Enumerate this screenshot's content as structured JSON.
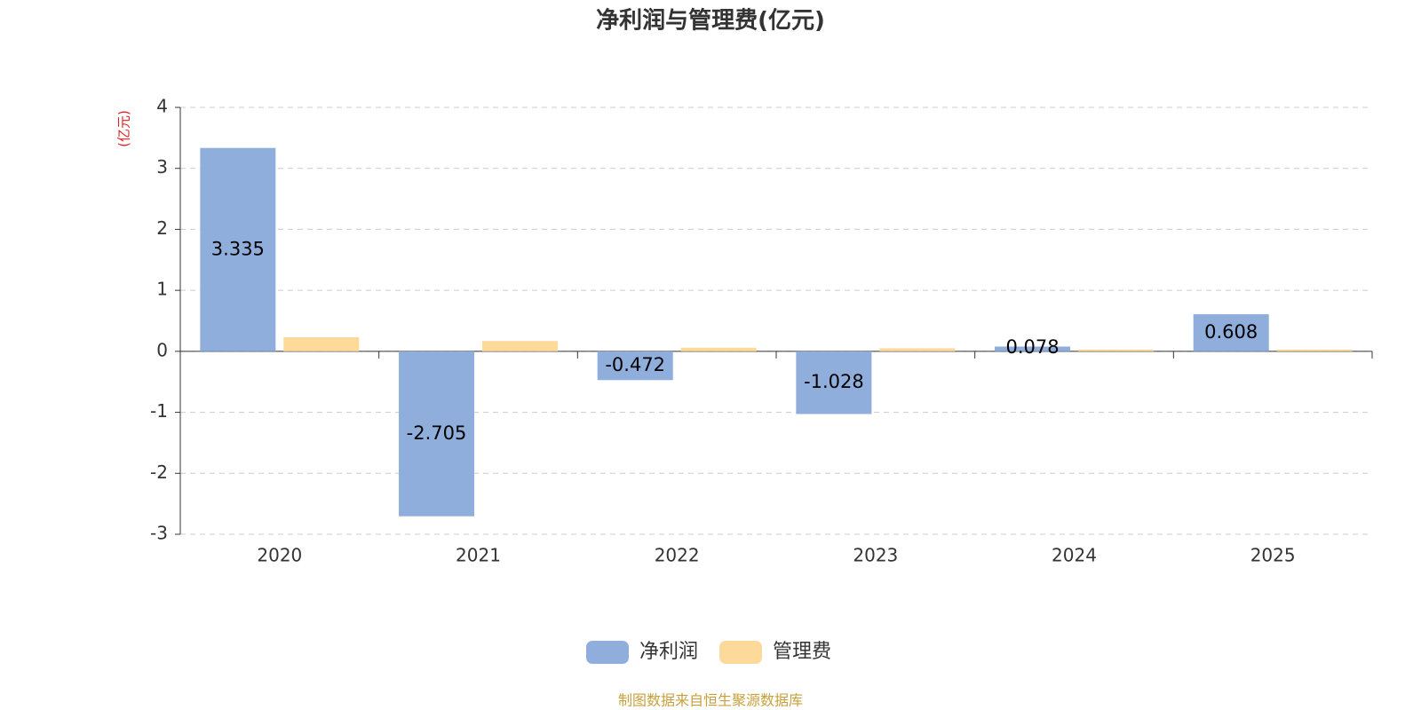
{
  "chart_data": {
    "type": "bar",
    "title": "净利润与管理费(亿元)",
    "y_axis_label": "(亿元)",
    "source": "制图数据来自恒生聚源数据库",
    "categories": [
      "2020",
      "2021",
      "2022",
      "2023",
      "2024",
      "2025"
    ],
    "series": [
      {
        "name": "净利润",
        "color": "#8faedb",
        "values": [
          3.335,
          -2.705,
          -0.472,
          -1.028,
          0.078,
          0.608
        ]
      },
      {
        "name": "管理费",
        "color": "#fdd99a",
        "values": [
          0.23,
          0.17,
          0.06,
          0.05,
          0.03,
          0.03
        ]
      }
    ],
    "ylim": [
      -3,
      4
    ],
    "yticks": [
      -3,
      -2,
      -1,
      0,
      1,
      2,
      3,
      4
    ],
    "grid": true,
    "legend": "bottom"
  }
}
